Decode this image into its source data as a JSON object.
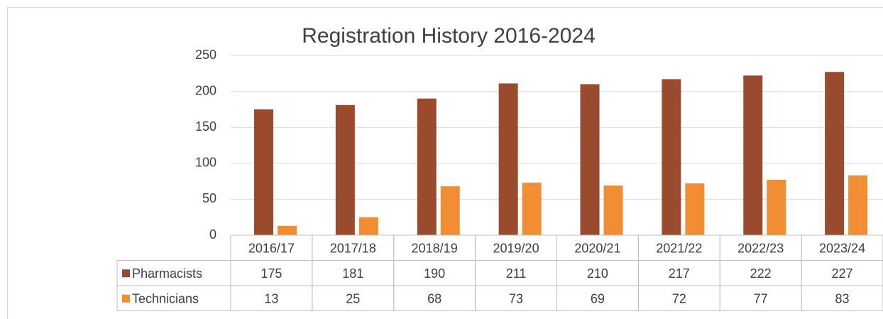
{
  "chart_data": {
    "type": "bar",
    "title": "Registration History 2016-2024",
    "categories": [
      "2016/17",
      "2017/18",
      "2018/19",
      "2019/20",
      "2020/21",
      "2021/22",
      "2022/23",
      "2023/24"
    ],
    "series": [
      {
        "name": "Pharmacists",
        "color": "#9a4b2e",
        "values": [
          175,
          181,
          190,
          211,
          210,
          217,
          222,
          227
        ]
      },
      {
        "name": "Technicians",
        "color": "#f18e33",
        "values": [
          13,
          25,
          68,
          73,
          69,
          72,
          77,
          83
        ]
      }
    ],
    "ylim": [
      0,
      250
    ],
    "yticks": [
      0,
      50,
      100,
      150,
      200,
      250
    ],
    "grid": true,
    "data_table": true
  }
}
